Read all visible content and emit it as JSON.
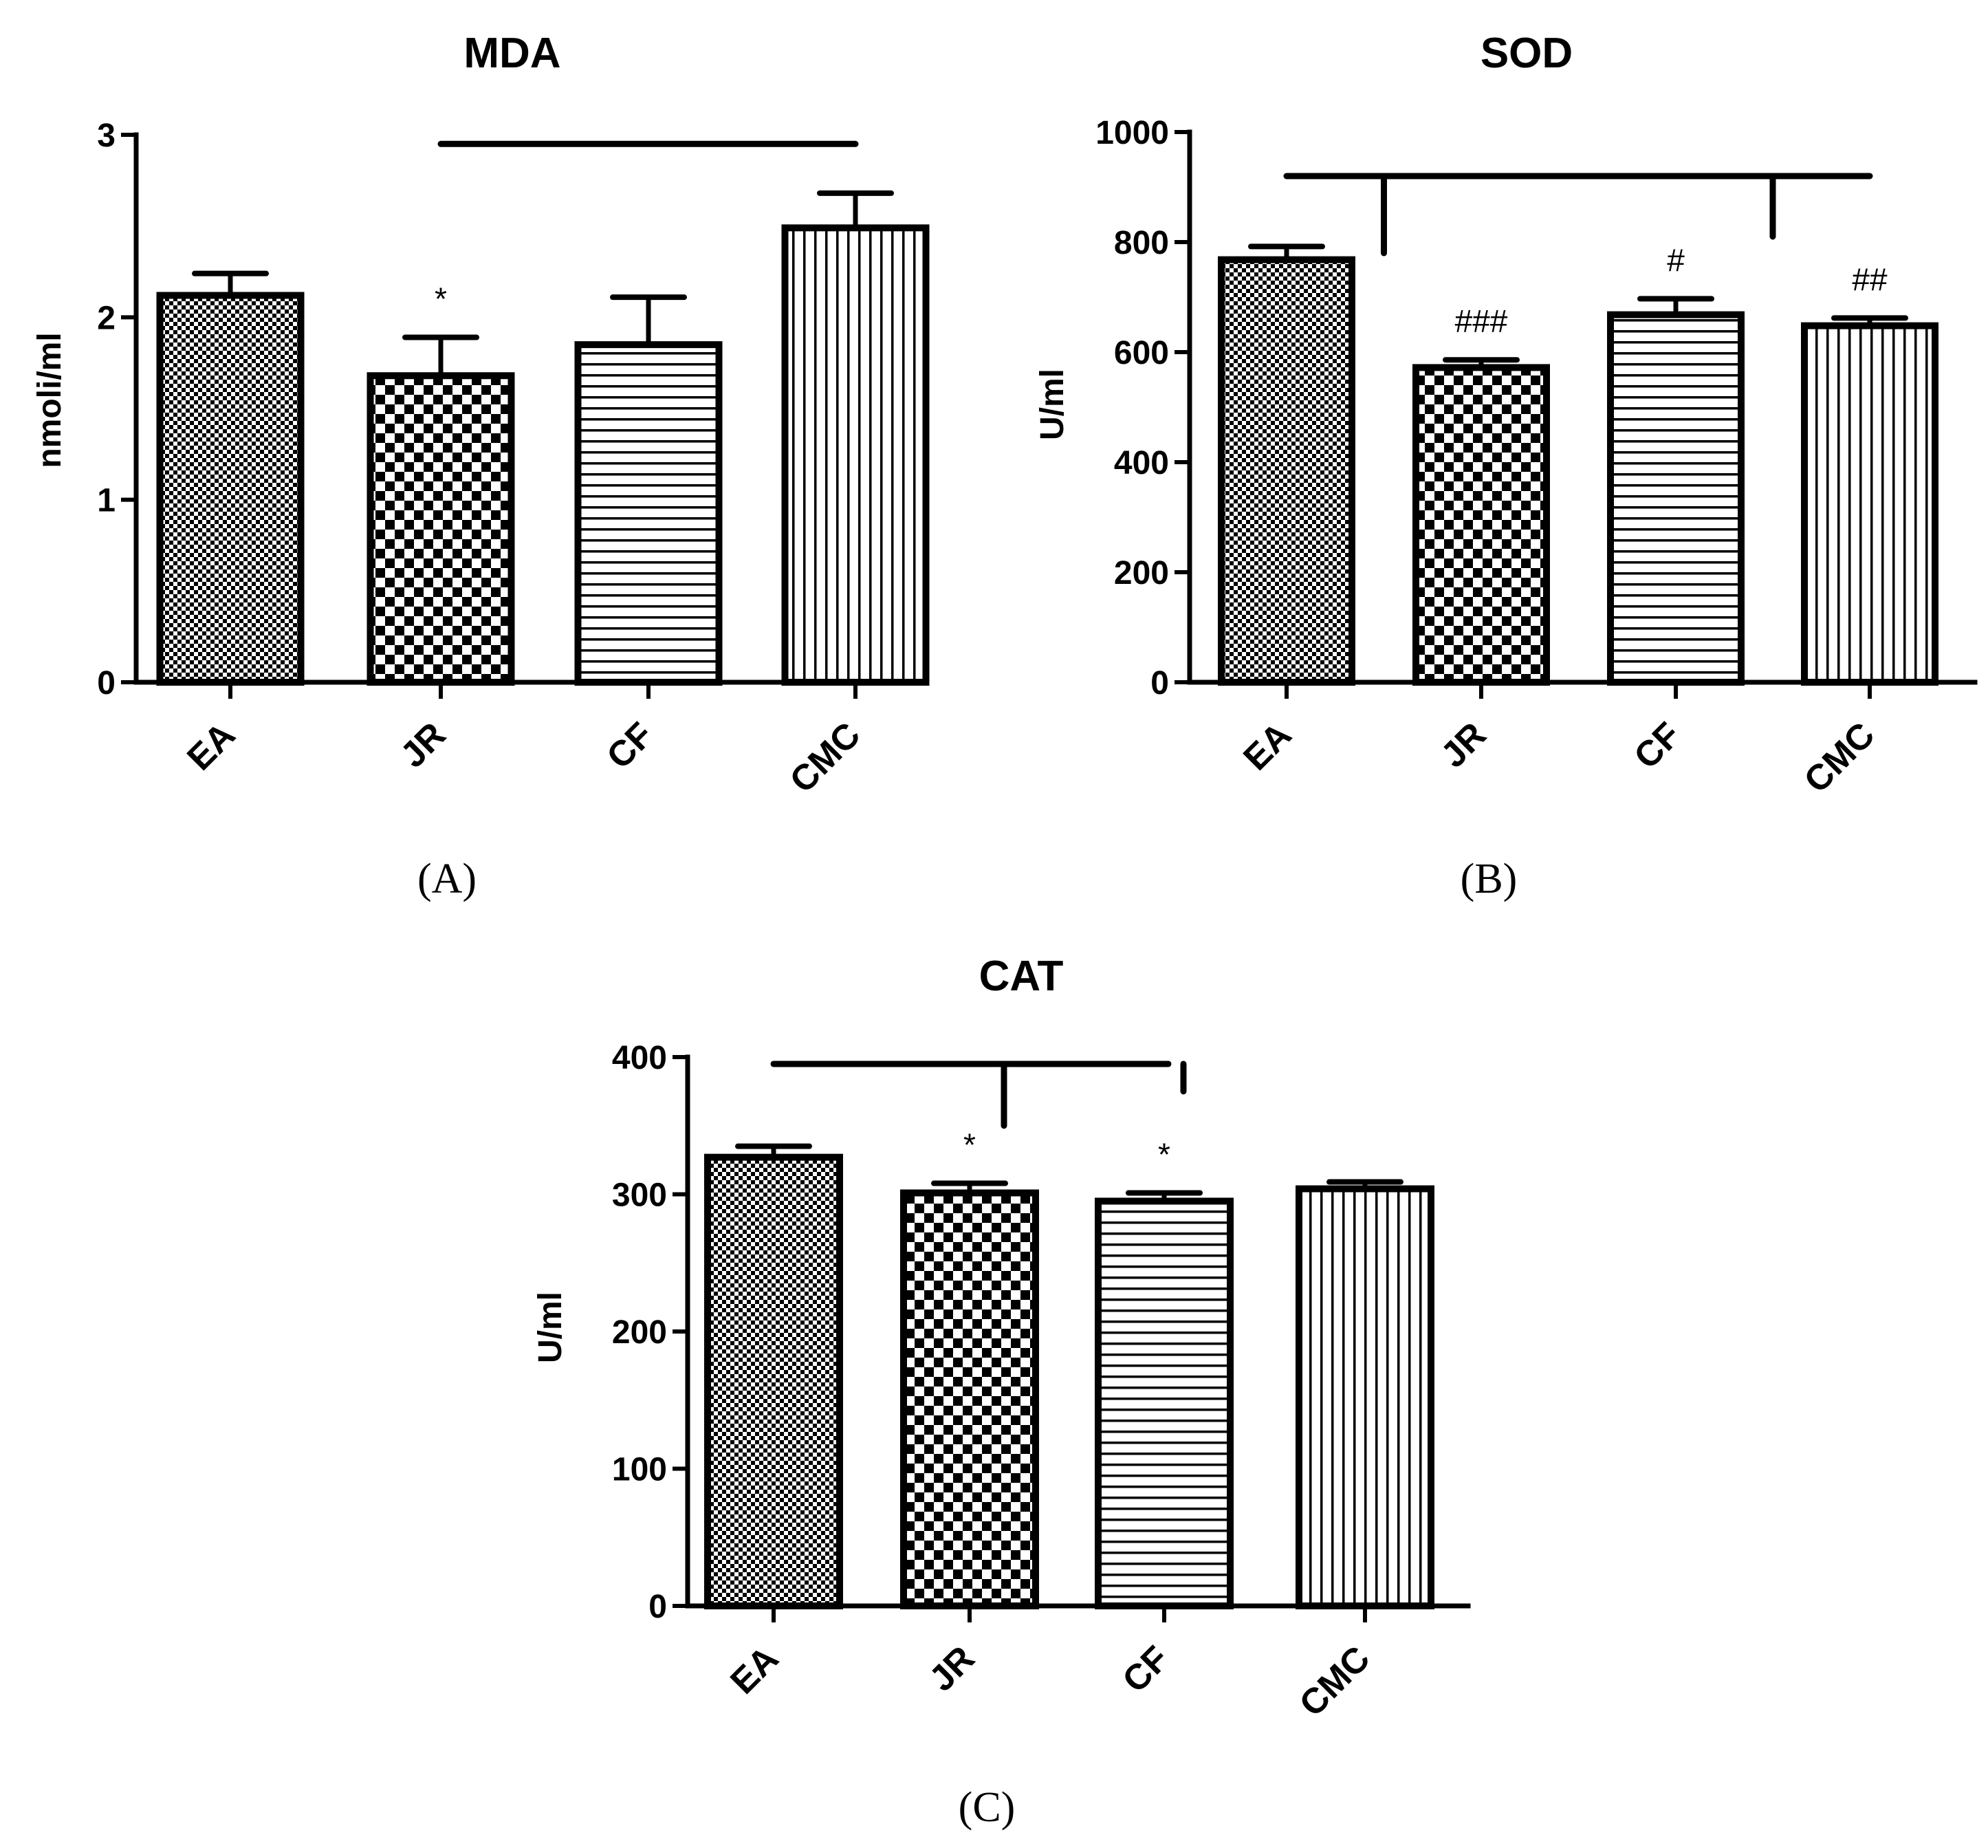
{
  "chart_data": [
    {
      "id": "A",
      "type": "bar",
      "title": "MDA",
      "ylabel": "nmoli/ml",
      "xlabel": "",
      "caption": "(A)",
      "categories": [
        "EA",
        "JR",
        "CF",
        "CMC"
      ],
      "patterns": [
        "fine-check",
        "coarse-check",
        "horizontal",
        "vertical"
      ],
      "values": [
        2.12,
        1.68,
        1.85,
        2.49
      ],
      "errors": [
        0.12,
        0.21,
        0.26,
        0.19
      ],
      "ylim": [
        0,
        3
      ],
      "yticks": [
        "0",
        "1",
        "2",
        "3"
      ],
      "significance": [
        {
          "category": "JR",
          "label": "*"
        }
      ],
      "comparison_bracket": {
        "from": "JR",
        "to": "CMC",
        "y": 2.95,
        "drops": []
      }
    },
    {
      "id": "B",
      "type": "bar",
      "title": "SOD",
      "ylabel": "U/ml",
      "xlabel": "",
      "caption": "(B)",
      "categories": [
        "EA",
        "JR",
        "CF",
        "CMC"
      ],
      "patterns": [
        "fine-check",
        "coarse-check",
        "horizontal",
        "vertical"
      ],
      "values": [
        768,
        572,
        668,
        648
      ],
      "errors": [
        24,
        14,
        29,
        14
      ],
      "ylim": [
        0,
        1000
      ],
      "yticks": [
        "0",
        "200",
        "400",
        "600",
        "800",
        "1000"
      ],
      "significance": [
        {
          "category": "JR",
          "label": "###"
        },
        {
          "category": "CF",
          "label": "#"
        },
        {
          "category": "CMC",
          "label": "##"
        }
      ],
      "comparison_bracket": {
        "from": "EA",
        "to": "CMC",
        "y": 920,
        "drops": [
          {
            "between": [
              "EA",
              "JR"
            ],
            "to": 780
          },
          {
            "between": [
              "CF",
              "CMC"
            ],
            "to": 810
          }
        ]
      }
    },
    {
      "id": "C",
      "type": "bar",
      "title": "CAT",
      "ylabel": "U/ml",
      "xlabel": "",
      "caption": "(C)",
      "categories": [
        "EA",
        "JR",
        "CF",
        "CMC"
      ],
      "patterns": [
        "fine-check",
        "coarse-check",
        "horizontal",
        "vertical"
      ],
      "values": [
        327,
        301,
        295,
        304
      ],
      "errors": [
        8,
        7,
        6,
        5
      ],
      "ylim": [
        0,
        400
      ],
      "yticks": [
        "0",
        "100",
        "200",
        "300",
        "400"
      ],
      "significance": [
        {
          "category": "JR",
          "label": "*"
        },
        {
          "category": "CF",
          "label": "*"
        }
      ],
      "comparison_bracket": {
        "from": "EA",
        "to": "CF",
        "y": 395,
        "drops": [
          {
            "between": [
              "JR",
              "JR"
            ],
            "to": 350
          },
          {
            "between": [
              "CF",
              "CF"
            ],
            "to": 375
          }
        ]
      }
    }
  ]
}
